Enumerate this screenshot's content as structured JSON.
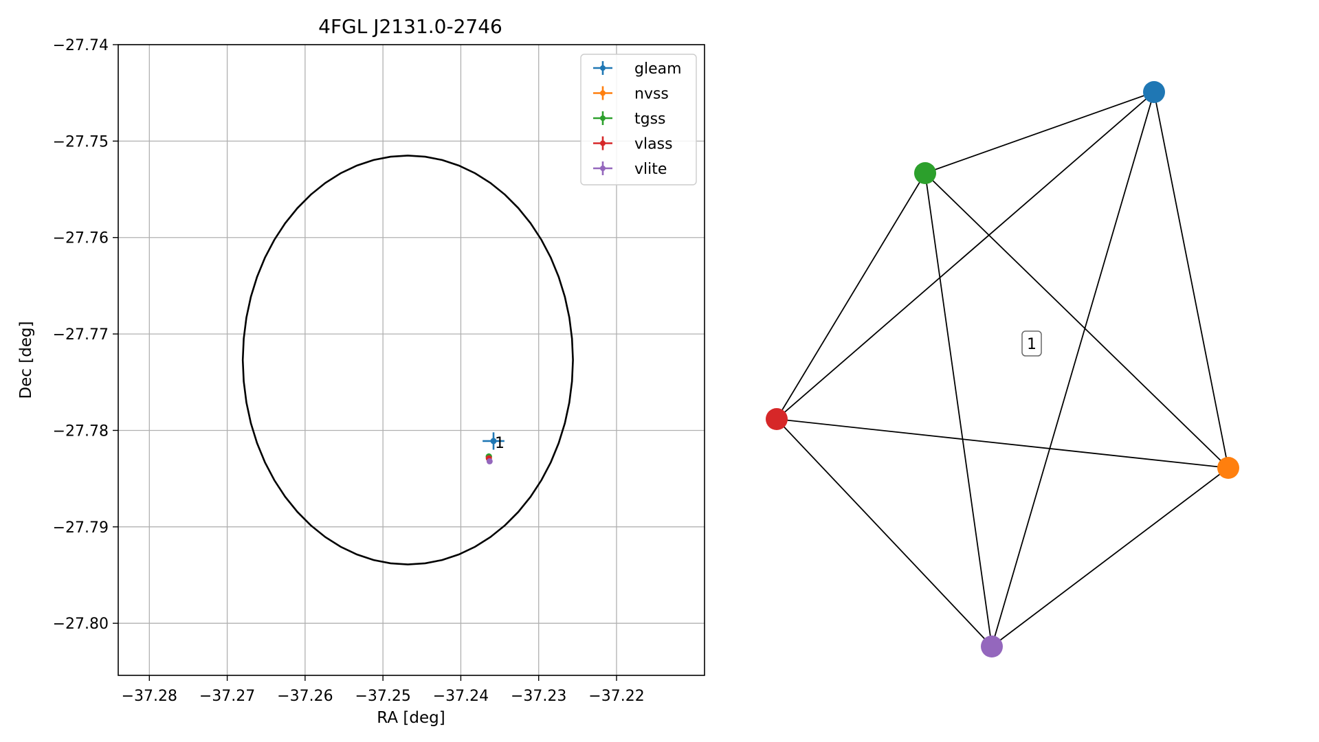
{
  "chart_data": [
    {
      "type": "scatter",
      "title": "4FGL J2131.0-2746",
      "xlabel": "RA [deg]",
      "ylabel": "Dec [deg]",
      "xlim": [
        -37.284,
        -37.2087
      ],
      "ylim": [
        -27.8054,
        -27.74
      ],
      "xticks": [
        -37.28,
        -37.27,
        -37.26,
        -37.25,
        -37.24,
        -37.23,
        -37.22
      ],
      "yticks": [
        -27.74,
        -27.75,
        -27.76,
        -27.77,
        -27.78,
        -27.79,
        -27.8
      ],
      "xtick_labels": [
        "−37.28",
        "−37.27",
        "−37.26",
        "−37.25",
        "−37.24",
        "−37.23",
        "−37.22"
      ],
      "ytick_labels": [
        "−27.74",
        "−27.75",
        "−27.76",
        "−27.77",
        "−27.78",
        "−27.79",
        "−27.80"
      ],
      "grid": true,
      "legend_position": "top-right",
      "circle": {
        "center_ra": -37.2468,
        "center_dec": -27.7727,
        "radius_deg": 0.0212
      },
      "series": [
        {
          "name": "gleam",
          "color": "#1f77b4",
          "x": -37.2358,
          "y": -27.7811,
          "xerr": 0.0014,
          "yerr": 0.0009,
          "label": "1"
        },
        {
          "name": "nvss",
          "color": "#ff7f0e",
          "x": -37.2364,
          "y": -27.7828,
          "xerr": 0.0003,
          "yerr": 0.0003,
          "label": ""
        },
        {
          "name": "tgss",
          "color": "#2ca02c",
          "x": -37.2364,
          "y": -27.7827,
          "xerr": 0.0004,
          "yerr": 0.0003,
          "label": ""
        },
        {
          "name": "vlass",
          "color": "#d62728",
          "x": -37.2364,
          "y": -27.7829,
          "xerr": 0.0002,
          "yerr": 0.0002,
          "label": ""
        },
        {
          "name": "vlite",
          "color": "#9467bd",
          "x": -37.2363,
          "y": -27.7832,
          "xerr": 0.0002,
          "yerr": 0.0002,
          "label": ""
        }
      ]
    },
    {
      "type": "network",
      "nodes": [
        {
          "id": "gleam",
          "color": "#1f77b4"
        },
        {
          "id": "nvss",
          "color": "#ff7f0e"
        },
        {
          "id": "tgss",
          "color": "#2ca02c"
        },
        {
          "id": "vlass",
          "color": "#d62728"
        },
        {
          "id": "vlite",
          "color": "#9467bd"
        }
      ],
      "edges": [
        [
          "gleam",
          "tgss"
        ],
        [
          "gleam",
          "vlass"
        ],
        [
          "gleam",
          "nvss"
        ],
        [
          "gleam",
          "vlite"
        ],
        [
          "tgss",
          "vlass"
        ],
        [
          "tgss",
          "nvss"
        ],
        [
          "tgss",
          "vlite"
        ],
        [
          "vlass",
          "nvss"
        ],
        [
          "vlass",
          "vlite"
        ],
        [
          "nvss",
          "vlite"
        ]
      ],
      "cluster_label": "1"
    }
  ]
}
